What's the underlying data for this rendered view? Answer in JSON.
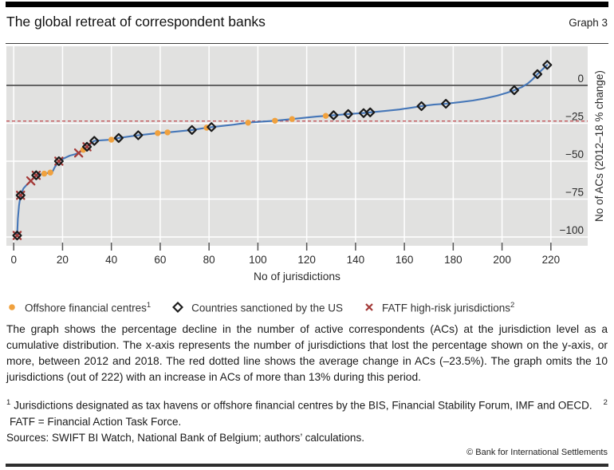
{
  "header": {
    "title": "The global retreat of correspondent banks",
    "graph_label": "Graph 3"
  },
  "chart_data": {
    "type": "line",
    "title": "The global retreat of correspondent banks",
    "xlabel": "No of jurisdictions",
    "ylabel": "No of ACs (2012–18 % change)",
    "xlim": [
      -3,
      235
    ],
    "ylim": [
      -106,
      26
    ],
    "x_ticks": [
      0,
      20,
      40,
      60,
      80,
      100,
      120,
      140,
      160,
      180,
      200,
      220
    ],
    "y_ticks": [
      0,
      -25,
      -50,
      -75,
      -100
    ],
    "y_tick_labels": [
      "0",
      "−25",
      "−50",
      "−75",
      "−100"
    ],
    "grid": true,
    "legend_position": "bottom",
    "avg_line_value": -23.5,
    "colors": {
      "plot_bg": "#e1e1e0",
      "grid": "#ffffff",
      "zero_line": "#3a3a3a",
      "avg_line": "#c4565a",
      "line": "#4677b8",
      "offshore": "#f0a13e",
      "sanctioned": "#1a1a1a",
      "fatf": "#a43a38",
      "tick_text": "#2a2a2a"
    },
    "line": [
      [
        1.4,
        -99
      ],
      [
        1.7,
        -88
      ],
      [
        2.2,
        -79
      ],
      [
        2.8,
        -72.5
      ],
      [
        4,
        -68
      ],
      [
        5.5,
        -65.3
      ],
      [
        7,
        -63
      ],
      [
        8.2,
        -61
      ],
      [
        9.2,
        -59.3
      ],
      [
        11,
        -58.6
      ],
      [
        12.5,
        -58.2
      ],
      [
        14,
        -57.8
      ],
      [
        15.8,
        -57.2
      ],
      [
        16.8,
        -54
      ],
      [
        18.5,
        -50
      ],
      [
        20.5,
        -48.2
      ],
      [
        23,
        -46.3
      ],
      [
        25,
        -45.5
      ],
      [
        26.6,
        -44.6
      ],
      [
        28.5,
        -42.5
      ],
      [
        30,
        -40.5
      ],
      [
        31.5,
        -38.5
      ],
      [
        33,
        -36.6
      ],
      [
        36,
        -36.2
      ],
      [
        40,
        -35.8
      ],
      [
        43,
        -34.7
      ],
      [
        47,
        -33.8
      ],
      [
        51,
        -32.9
      ],
      [
        55,
        -32.2
      ],
      [
        59,
        -31.5
      ],
      [
        63,
        -31
      ],
      [
        68,
        -30.2
      ],
      [
        73,
        -29.4
      ],
      [
        77,
        -28.4
      ],
      [
        81,
        -27.5
      ],
      [
        85,
        -26.8
      ],
      [
        90,
        -25.9
      ],
      [
        96,
        -24.6
      ],
      [
        101,
        -24
      ],
      [
        107,
        -23.3
      ],
      [
        114,
        -22.2
      ],
      [
        120,
        -21.2
      ],
      [
        124,
        -20.6
      ],
      [
        128,
        -20.1
      ],
      [
        131,
        -19.7
      ],
      [
        137,
        -18.9
      ],
      [
        143.5,
        -18.2
      ],
      [
        146,
        -17.8
      ],
      [
        152,
        -16.9
      ],
      [
        158,
        -15.9
      ],
      [
        163,
        -14.7
      ],
      [
        167,
        -13.7
      ],
      [
        172,
        -12.7
      ],
      [
        177,
        -12.1
      ],
      [
        183,
        -11
      ],
      [
        188,
        -10
      ],
      [
        193,
        -8.6
      ],
      [
        198,
        -6.8
      ],
      [
        202,
        -4.9
      ],
      [
        205,
        -3.2
      ],
      [
        208,
        -1.2
      ],
      [
        210.5,
        1.2
      ],
      [
        212.5,
        4
      ],
      [
        214.5,
        7.4
      ],
      [
        216.5,
        10.5
      ],
      [
        218.5,
        13.5
      ]
    ],
    "series": [
      {
        "name": "Offshore financial centres",
        "marker": "circle",
        "points": [
          [
            12.5,
            -58.2
          ],
          [
            15,
            -57.5
          ],
          [
            28.5,
            -42.5
          ],
          [
            40,
            -35.8
          ],
          [
            59,
            -31.5
          ],
          [
            63,
            -31
          ],
          [
            79,
            -27.9
          ],
          [
            96,
            -24.6
          ],
          [
            107,
            -23.3
          ],
          [
            114,
            -22.2
          ],
          [
            127.8,
            -20.1
          ]
        ]
      },
      {
        "name": "Countries sanctioned by the US",
        "marker": "diamond",
        "points": [
          [
            1.4,
            -99
          ],
          [
            2.8,
            -72.5
          ],
          [
            9.2,
            -59.3
          ],
          [
            18.5,
            -50
          ],
          [
            30,
            -40.5
          ],
          [
            33,
            -36.6
          ],
          [
            43,
            -34.7
          ],
          [
            51,
            -32.9
          ],
          [
            73,
            -29.4
          ],
          [
            81,
            -27.5
          ],
          [
            131,
            -19.7
          ],
          [
            137,
            -18.9
          ],
          [
            143.3,
            -18.3
          ],
          [
            146,
            -17.8
          ],
          [
            167,
            -13.7
          ],
          [
            177,
            -12.1
          ],
          [
            205,
            -3.2
          ],
          [
            214.5,
            7.4
          ],
          [
            218.5,
            13.5
          ]
        ]
      },
      {
        "name": "FATF high-risk jurisdictions",
        "marker": "x",
        "points": [
          [
            1.4,
            -99
          ],
          [
            2.8,
            -72.5
          ],
          [
            7,
            -63
          ],
          [
            9.2,
            -59.3
          ],
          [
            18.5,
            -50
          ],
          [
            26.6,
            -44.6
          ],
          [
            30,
            -40.5
          ]
        ]
      }
    ]
  },
  "legend": {
    "items": [
      {
        "label": "Offshore financial centres",
        "sup": "1"
      },
      {
        "label": "Countries sanctioned by the US"
      },
      {
        "label": "FATF high-risk jurisdictions",
        "sup": "2"
      }
    ]
  },
  "description": "The graph shows the percentage decline in the number of active correspondents (ACs) at the jurisdiction level as a cumulative distribution. The x-axis represents the number of jurisdictions that lost the percentage shown on the y-axis, or more, between 2012 and 2018. The red dotted line shows the average change in ACs (–23.5%). The graph omits the 10 jurisdictions (out of 222) with an increase in ACs of more than 13% during this period.",
  "footnotes": [
    {
      "sup": "1",
      "text": "Jurisdictions designated as tax havens or offshore financial centres by the BIS, Financial Stability Forum, IMF and OECD."
    },
    {
      "sup": "2",
      "text": "FATF = Financial Action Task Force."
    }
  ],
  "sources": "Sources: SWIFT BI Watch, National Bank of Belgium; authors’ calculations.",
  "copyright": "© Bank for International Settlements"
}
